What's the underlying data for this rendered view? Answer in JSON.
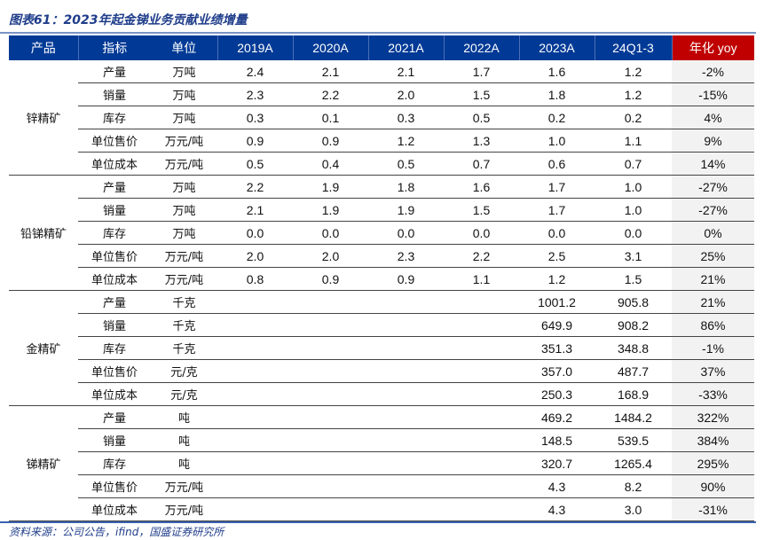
{
  "title": "图表61：2023年起金锑业务贡献业绩增量",
  "headers": [
    "产品",
    "指标",
    "单位",
    "2019A",
    "2020A",
    "2021A",
    "2022A",
    "2023A",
    "24Q1-3",
    "年化 yoy"
  ],
  "groups": [
    {
      "product": "锌精矿",
      "rows": [
        [
          "产量",
          "万吨",
          "2.4",
          "2.1",
          "2.1",
          "1.7",
          "1.6",
          "1.2",
          "-2%"
        ],
        [
          "销量",
          "万吨",
          "2.3",
          "2.2",
          "2.0",
          "1.5",
          "1.8",
          "1.2",
          "-15%"
        ],
        [
          "库存",
          "万吨",
          "0.3",
          "0.1",
          "0.3",
          "0.5",
          "0.2",
          "0.2",
          "4%"
        ],
        [
          "单位售价",
          "万元/吨",
          "0.9",
          "0.9",
          "1.2",
          "1.3",
          "1.0",
          "1.1",
          "9%"
        ],
        [
          "单位成本",
          "万元/吨",
          "0.5",
          "0.4",
          "0.5",
          "0.7",
          "0.6",
          "0.7",
          "14%"
        ]
      ]
    },
    {
      "product": "铅锑精矿",
      "rows": [
        [
          "产量",
          "万吨",
          "2.2",
          "1.9",
          "1.8",
          "1.6",
          "1.7",
          "1.0",
          "-27%"
        ],
        [
          "销量",
          "万吨",
          "2.1",
          "1.9",
          "1.9",
          "1.5",
          "1.7",
          "1.0",
          "-27%"
        ],
        [
          "库存",
          "万吨",
          "0.0",
          "0.0",
          "0.0",
          "0.0",
          "0.0",
          "0.0",
          "0%"
        ],
        [
          "单位售价",
          "万元/吨",
          "2.0",
          "2.0",
          "2.3",
          "2.2",
          "2.5",
          "3.1",
          "25%"
        ],
        [
          "单位成本",
          "万元/吨",
          "0.8",
          "0.9",
          "0.9",
          "1.1",
          "1.2",
          "1.5",
          "21%"
        ]
      ]
    },
    {
      "product": "金精矿",
      "rows": [
        [
          "产量",
          "千克",
          "",
          "",
          "",
          "",
          "1001.2",
          "905.8",
          "21%"
        ],
        [
          "销量",
          "千克",
          "",
          "",
          "",
          "",
          "649.9",
          "908.2",
          "86%"
        ],
        [
          "库存",
          "千克",
          "",
          "",
          "",
          "",
          "351.3",
          "348.8",
          "-1%"
        ],
        [
          "单位售价",
          "元/克",
          "",
          "",
          "",
          "",
          "357.0",
          "487.7",
          "37%"
        ],
        [
          "单位成本",
          "元/克",
          "",
          "",
          "",
          "",
          "250.3",
          "168.9",
          "-33%"
        ]
      ]
    },
    {
      "product": "锑精矿",
      "rows": [
        [
          "产量",
          "吨",
          "",
          "",
          "",
          "",
          "469.2",
          "1484.2",
          "322%"
        ],
        [
          "销量",
          "吨",
          "",
          "",
          "",
          "",
          "148.5",
          "539.5",
          "384%"
        ],
        [
          "库存",
          "吨",
          "",
          "",
          "",
          "",
          "320.7",
          "1265.4",
          "295%"
        ],
        [
          "单位售价",
          "万元/吨",
          "",
          "",
          "",
          "",
          "4.3",
          "8.2",
          "90%"
        ],
        [
          "单位成本",
          "万元/吨",
          "",
          "",
          "",
          "",
          "4.3",
          "3.0",
          "-31%"
        ]
      ]
    }
  ],
  "source": "资料来源：公司公告，ifind，国盛证券研究所",
  "colors": {
    "header": "#003a96",
    "yoy_header": "#c00000",
    "yoy_cell": "#f2f2f2"
  }
}
